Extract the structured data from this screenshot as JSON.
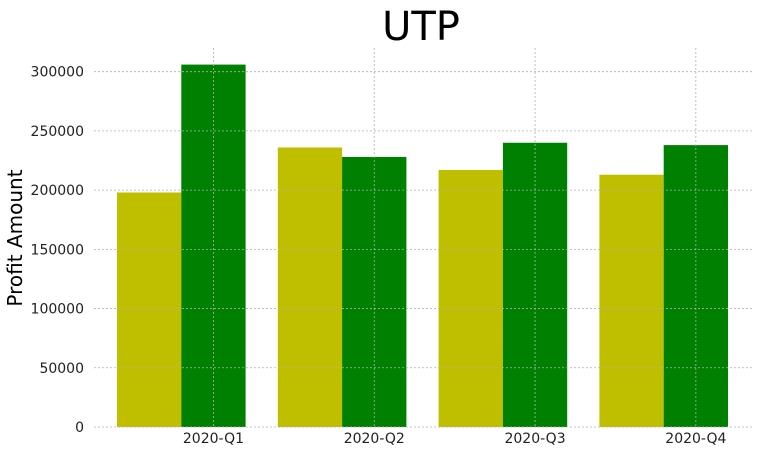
{
  "chart_data": {
    "type": "bar",
    "title": "UTP",
    "xlabel": "",
    "ylabel": "Profit Amount",
    "categories": [
      "2020-Q1",
      "2020-Q2",
      "2020-Q3",
      "2020-Q4"
    ],
    "series": [
      {
        "color": "#bfbf00",
        "values": [
          198000,
          236000,
          217000,
          213000
        ]
      },
      {
        "color": "#008000",
        "values": [
          306000,
          228000,
          240000,
          238000
        ]
      }
    ],
    "yticks": [
      0,
      50000,
      100000,
      150000,
      200000,
      250000,
      300000
    ],
    "ytick_labels": [
      "0",
      "50000",
      "100000",
      "150000",
      "200000",
      "250000",
      "300000"
    ],
    "ylim": [
      0,
      320000
    ],
    "grid": true,
    "legend": "none"
  }
}
